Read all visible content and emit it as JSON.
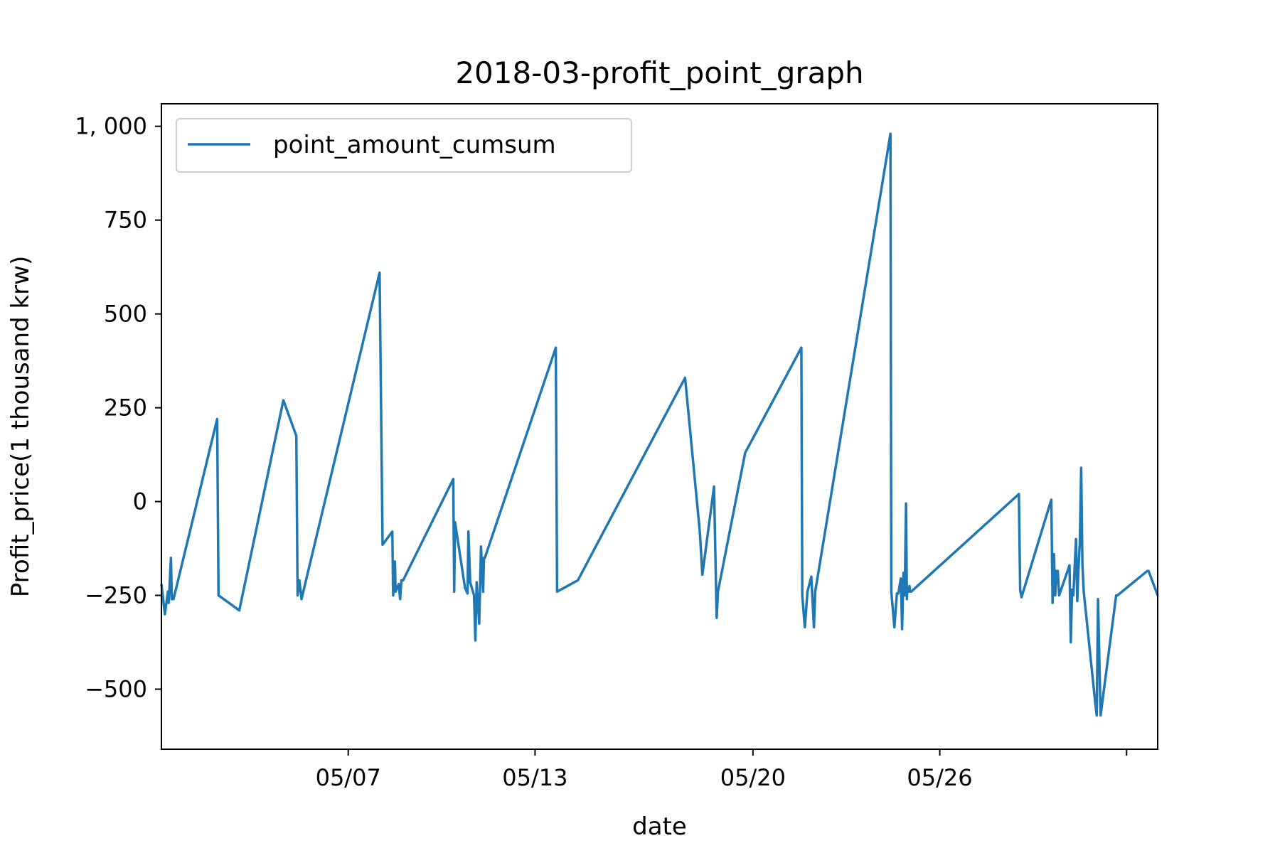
{
  "chart_data": {
    "type": "line",
    "title": "2018-03-profit_point_graph",
    "xlabel": "date",
    "ylabel": "Profit_price(1 thousand krw)",
    "xlim": [
      "2018-05-01",
      "2018-06-02"
    ],
    "ylim": [
      -660,
      1060
    ],
    "y_ticks": [
      {
        "value": 1000,
        "label": "1, 000"
      },
      {
        "value": 750,
        "label": "750"
      },
      {
        "value": 500,
        "label": "500"
      },
      {
        "value": 250,
        "label": "250"
      },
      {
        "value": 0,
        "label": "0"
      },
      {
        "value": -250,
        "label": "−250"
      },
      {
        "value": -500,
        "label": "−500"
      }
    ],
    "x_ticks": [
      {
        "value": "2018-05-07",
        "label": "05/07"
      },
      {
        "value": "2018-05-13",
        "label": "05/13"
      },
      {
        "value": "2018-05-20",
        "label": "05/20"
      },
      {
        "value": "2018-05-26",
        "label": "05/26"
      },
      {
        "value": "2018-06-01",
        "label": ""
      }
    ],
    "grid": false,
    "legend_position": "top-left",
    "series": [
      {
        "name": "point_amount_cumsum",
        "color": "#1f77b4",
        "x": [
          "2018-05-01 00:00",
          "2018-05-01 02:40",
          "2018-05-01 05:00",
          "2018-05-01 05:40",
          "2018-05-01 07:20",
          "2018-05-01 08:00",
          "2018-05-01 09:20",
          "2018-05-02 19:00",
          "2018-05-02 20:00",
          "2018-05-03 12:00",
          "2018-05-04 22:00",
          "2018-05-05 08:00",
          "2018-05-05 09:00",
          "2018-05-05 10:20",
          "2018-05-05 12:00",
          "2018-05-08 00:10",
          "2018-05-08 02:30",
          "2018-05-08 10:00",
          "2018-05-08 10:40",
          "2018-05-08 12:00",
          "2018-05-08 12:30",
          "2018-05-08 15:00",
          "2018-05-08 16:00",
          "2018-05-08 17:00",
          "2018-05-08 18:20",
          "2018-05-10 09:00",
          "2018-05-10 09:40",
          "2018-05-10 10:20",
          "2018-05-10 18:00",
          "2018-05-10 20:00",
          "2018-05-10 20:40",
          "2018-05-10 22:00",
          "2018-05-11 01:00",
          "2018-05-11 02:00",
          "2018-05-11 03:00",
          "2018-05-11 05:00",
          "2018-05-11 06:20",
          "2018-05-11 08:00",
          "2018-05-11 08:40",
          "2018-05-11 09:20",
          "2018-05-13 16:00",
          "2018-05-13 17:00",
          "2018-05-14 09:00",
          "2018-05-17 19:40",
          "2018-05-18 07:00",
          "2018-05-18 09:00",
          "2018-05-18 18:00",
          "2018-05-18 20:00",
          "2018-05-18 21:00",
          "2018-05-19 18:00",
          "2018-05-21 13:20",
          "2018-05-21 14:00",
          "2018-05-21 16:00",
          "2018-05-21 18:00",
          "2018-05-21 21:00",
          "2018-05-21 23:00",
          "2018-05-22 00:00",
          "2018-05-24 10:00",
          "2018-05-24 10:40",
          "2018-05-24 13:00",
          "2018-05-24 15:00",
          "2018-05-24 16:00",
          "2018-05-24 18:00",
          "2018-05-24 19:00",
          "2018-05-24 20:00",
          "2018-05-24 21:00",
          "2018-05-24 22:00",
          "2018-05-24 22:40",
          "2018-05-24 23:00",
          "2018-05-25 00:00",
          "2018-05-25 00:40",
          "2018-05-25 01:00",
          "2018-05-25 02:00",
          "2018-05-28 13:00",
          "2018-05-28 14:00",
          "2018-05-28 15:00",
          "2018-05-29 14:00",
          "2018-05-29 15:00",
          "2018-05-29 16:00",
          "2018-05-29 17:00",
          "2018-05-29 18:00",
          "2018-05-29 19:00",
          "2018-05-29 20:00",
          "2018-05-30 04:00",
          "2018-05-30 05:00",
          "2018-05-30 06:00",
          "2018-05-30 07:00",
          "2018-05-30 09:00",
          "2018-05-30 10:00",
          "2018-05-30 11:00",
          "2018-05-30 12:00",
          "2018-05-30 13:00",
          "2018-05-30 14:00",
          "2018-05-30 15:00",
          "2018-05-31 00:00",
          "2018-05-31 01:00",
          "2018-05-31 02:00",
          "2018-05-31 04:00",
          "2018-05-31 16:00",
          "2018-05-31 17:00",
          "2018-06-01 16:00",
          "2018-06-01 17:00",
          "2018-06-02 00:00",
          "2018-06-02 00:30"
        ],
        "y": [
          -220,
          -300,
          -240,
          -270,
          -150,
          -260,
          -260,
          220,
          -250,
          -290,
          270,
          175,
          -250,
          -210,
          -260,
          610,
          -115,
          -80,
          -250,
          -160,
          -240,
          -220,
          -260,
          -210,
          -210,
          60,
          -240,
          -55,
          -230,
          -245,
          -80,
          -215,
          -250,
          -370,
          -215,
          -325,
          -120,
          -240,
          -150,
          -150,
          410,
          -240,
          -210,
          330,
          -80,
          -195,
          40,
          -310,
          -240,
          130,
          410,
          -250,
          -335,
          -240,
          -200,
          -335,
          -240,
          980,
          -240,
          -335,
          -245,
          -245,
          -205,
          -340,
          -190,
          -250,
          -5,
          -260,
          -230,
          -240,
          -225,
          -240,
          -240,
          20,
          -235,
          -255,
          5,
          -270,
          -140,
          -250,
          -185,
          -185,
          -250,
          -170,
          -375,
          -235,
          -250,
          -100,
          -265,
          -175,
          -110,
          90,
          -170,
          -240,
          -540,
          -570,
          -260,
          -570,
          -250,
          -250,
          -185,
          -185,
          -250,
          -250
        ]
      }
    ]
  }
}
